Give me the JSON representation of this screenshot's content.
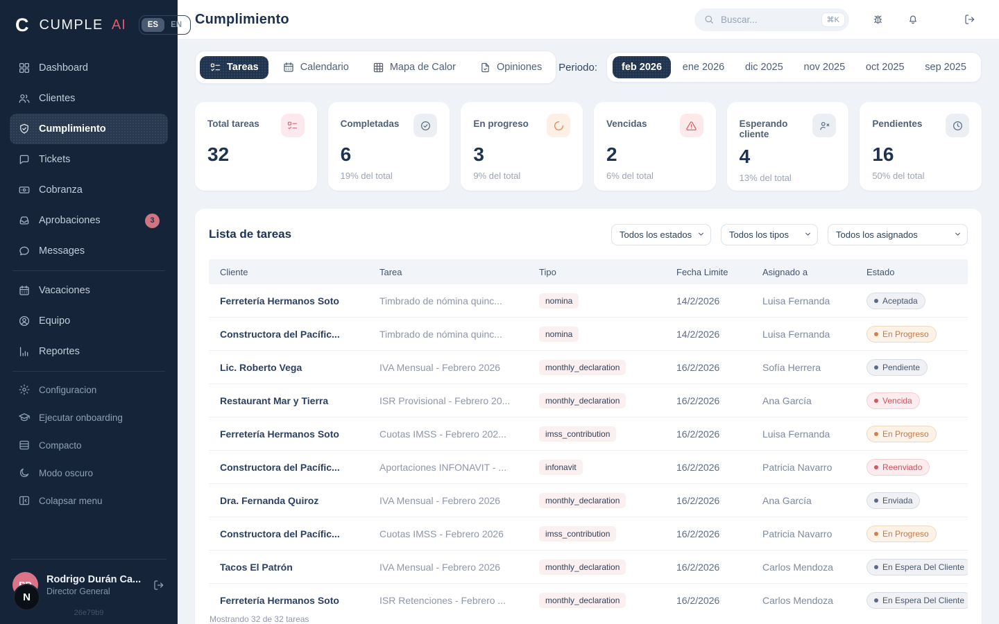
{
  "app": {
    "brand_c": "C",
    "brand_name": "CUMPLE",
    "brand_ai": "AI",
    "lang_es": "ES",
    "lang_en": "EN",
    "version": "26e79b9",
    "floating_n": "N",
    "accent_rose": "#e0596e",
    "sidebar_bg": "#16243a",
    "dark_navy": "#20344f"
  },
  "header": {
    "title": "Cumplimiento",
    "search_placeholder": "Buscar...",
    "search_shortcut": "⌘K"
  },
  "sidebar": {
    "main_items": [
      {
        "label": "Dashboard",
        "icon": "dashboard-icon"
      },
      {
        "label": "Clientes",
        "icon": "users-icon"
      },
      {
        "label": "Cumplimiento",
        "icon": "shield-check-icon",
        "active": true
      },
      {
        "label": "Tickets",
        "icon": "chat-square-icon"
      },
      {
        "label": "Cobranza",
        "icon": "banknote-icon"
      },
      {
        "label": "Aprobaciones",
        "icon": "inbox-icon",
        "badge": "3"
      },
      {
        "label": "Messages",
        "icon": "chat-round-icon"
      }
    ],
    "secondary_items": [
      {
        "label": "Vacaciones",
        "icon": "calendar-icon"
      },
      {
        "label": "Equipo",
        "icon": "user-circle-icon"
      },
      {
        "label": "Reportes",
        "icon": "bar-chart-icon"
      }
    ],
    "utility_items": [
      {
        "label": "Configuracion",
        "icon": "gear-icon"
      },
      {
        "label": "Ejecutar onboarding",
        "icon": "graduation-cap-icon"
      },
      {
        "label": "Compacto",
        "icon": "rows-icon"
      },
      {
        "label": "Modo oscuro",
        "icon": "moon-icon"
      },
      {
        "label": "Colapsar menu",
        "icon": "collapse-panel-icon"
      }
    ],
    "user": {
      "initials": "RD",
      "name": "Rodrigo Durán Ca...",
      "role": "Director General"
    }
  },
  "toolbar": {
    "tabs": [
      {
        "label": "Tareas",
        "icon": "list-todo-icon",
        "active": true
      },
      {
        "label": "Calendario",
        "icon": "calendar-icon",
        "active": false
      },
      {
        "label": "Mapa de Calor",
        "icon": "grid-icon",
        "active": false
      },
      {
        "label": "Opiniones",
        "icon": "file-check-icon",
        "active": false
      }
    ],
    "period_label": "Periodo:",
    "periods": [
      {
        "label": "feb 2026",
        "active": true
      },
      {
        "label": "ene 2026",
        "active": false
      },
      {
        "label": "dic 2025",
        "active": false
      },
      {
        "label": "nov 2025",
        "active": false
      },
      {
        "label": "oct 2025",
        "active": false
      },
      {
        "label": "sep 2025",
        "active": false
      }
    ]
  },
  "stats": [
    {
      "label": "Total tareas",
      "value": "32",
      "sub": "",
      "icon": "list-todo-icon",
      "chip_bg": "#fbe9ee",
      "icon_color": "#d6687c"
    },
    {
      "label": "Completadas",
      "value": "6",
      "sub": "19% del total",
      "icon": "check-circle-icon",
      "chip_bg": "#ebeef2",
      "icon_color": "#5b6b83"
    },
    {
      "label": "En progreso",
      "value": "3",
      "sub": "9% del total",
      "icon": "loader-icon",
      "chip_bg": "#fcefe4",
      "icon_color": "#dd8557"
    },
    {
      "label": "Vencidas",
      "value": "2",
      "sub": "6% del total",
      "icon": "alert-triangle-icon",
      "chip_bg": "#fce9e9",
      "icon_color": "#d8595f"
    },
    {
      "label": "Esperando cliente",
      "value": "4",
      "sub": "13% del total",
      "icon": "user-x-icon",
      "chip_bg": "#ebeef2",
      "icon_color": "#5b6b83"
    },
    {
      "label": "Pendientes",
      "value": "16",
      "sub": "50% del total",
      "icon": "clock-icon",
      "chip_bg": "#ebeef2",
      "icon_color": "#5b6b83"
    }
  ],
  "tasklist": {
    "title": "Lista de tareas",
    "filters": [
      {
        "value": "Todos los estados",
        "width_class": "w-estados"
      },
      {
        "value": "Todos los tipos",
        "width_class": "w-tipos"
      },
      {
        "value": "Todos los asignados",
        "width_class": "w-asignados"
      }
    ],
    "columns": [
      "Cliente",
      "Tarea",
      "Tipo",
      "Fecha Limite",
      "Asignado a",
      "Estado"
    ],
    "rows": [
      {
        "client": "Ferretería Hermanos Soto",
        "task": "Timbrado de nómina quinc...",
        "type": "nomina",
        "due": "14/2/2026",
        "assignee": "Luisa Fernanda",
        "status": "Aceptada",
        "status_variant": "neutral"
      },
      {
        "client": "Constructora del Pacífic...",
        "task": "Timbrado de nómina quinc...",
        "type": "nomina",
        "due": "14/2/2026",
        "assignee": "Luisa Fernanda",
        "status": "En Progreso",
        "status_variant": "progress"
      },
      {
        "client": "Lic. Roberto Vega",
        "task": "IVA Mensual - Febrero 2026",
        "type": "monthly_declaration",
        "due": "16/2/2026",
        "assignee": "Sofía Herrera",
        "status": "Pendiente",
        "status_variant": "neutral"
      },
      {
        "client": "Restaurant Mar y Tierra",
        "task": "ISR Provisional - Febrero 20...",
        "type": "monthly_declaration",
        "due": "16/2/2026",
        "assignee": "Ana García",
        "status": "Vencida",
        "status_variant": "danger"
      },
      {
        "client": "Ferretería Hermanos Soto",
        "task": "Cuotas IMSS - Febrero 202...",
        "type": "imss_contribution",
        "due": "16/2/2026",
        "assignee": "Luisa Fernanda",
        "status": "En Progreso",
        "status_variant": "progress"
      },
      {
        "client": "Constructora del Pacífic...",
        "task": "Aportaciones INFONAVIT - ...",
        "type": "infonavit",
        "due": "16/2/2026",
        "assignee": "Patricia Navarro",
        "status": "Reenviado",
        "status_variant": "danger"
      },
      {
        "client": "Dra. Fernanda Quiroz",
        "task": "IVA Mensual - Febrero 2026",
        "type": "monthly_declaration",
        "due": "16/2/2026",
        "assignee": "Ana García",
        "status": "Enviada",
        "status_variant": "neutral"
      },
      {
        "client": "Constructora del Pacífic...",
        "task": "Cuotas IMSS - Febrero 2026",
        "type": "imss_contribution",
        "due": "16/2/2026",
        "assignee": "Patricia Navarro",
        "status": "En Progreso",
        "status_variant": "progress"
      },
      {
        "client": "Tacos El Patrón",
        "task": "IVA Mensual - Febrero 2026",
        "type": "monthly_declaration",
        "due": "16/2/2026",
        "assignee": "Carlos Mendoza",
        "status": "En Espera Del Cliente",
        "status_variant": "neutral"
      },
      {
        "client": "Ferretería Hermanos Soto",
        "task": "ISR Retenciones - Febrero ...",
        "type": "monthly_declaration",
        "due": "16/2/2026",
        "assignee": "Carlos Mendoza",
        "status": "En Espera Del Cliente",
        "status_variant": "neutral"
      }
    ],
    "footer": "Mostrando 32 de 32 tareas"
  }
}
